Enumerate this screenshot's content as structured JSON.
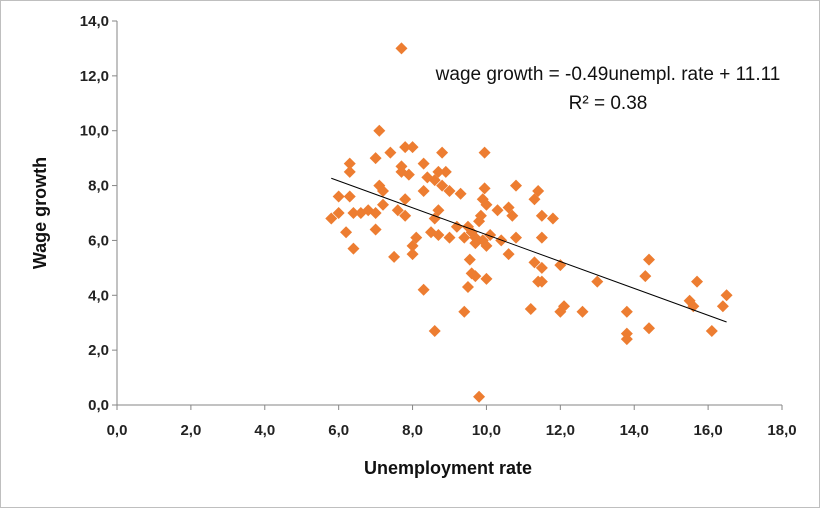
{
  "chart_data": {
    "type": "scatter",
    "xlabel": "Unemployment rate",
    "ylabel": "Wage growth",
    "xlim": [
      0,
      18
    ],
    "ylim": [
      0,
      14
    ],
    "x_ticks": [
      "0,0",
      "2,0",
      "4,0",
      "6,0",
      "8,0",
      "10,0",
      "12,0",
      "14,0",
      "16,0",
      "18,0"
    ],
    "y_ticks": [
      "0,0",
      "2,0",
      "4,0",
      "6,0",
      "8,0",
      "10,0",
      "12,0",
      "14,0"
    ],
    "grid": false,
    "marker_color": "#ED7D31",
    "trendline": {
      "equation": "wage growth = -0.49unempl. rate + 11.11",
      "r2": "R² = 0.38",
      "slope": -0.49,
      "intercept": 11.11,
      "x_range": [
        5.8,
        16.5
      ],
      "color": "#000000"
    },
    "points": [
      [
        7.7,
        13.0
      ],
      [
        7.1,
        10.0
      ],
      [
        7.8,
        9.4
      ],
      [
        8.0,
        9.4
      ],
      [
        8.8,
        9.2
      ],
      [
        9.95,
        9.2
      ],
      [
        7.4,
        9.2
      ],
      [
        7.0,
        9.0
      ],
      [
        8.3,
        8.8
      ],
      [
        8.7,
        8.5
      ],
      [
        8.9,
        8.5
      ],
      [
        6.3,
        8.8
      ],
      [
        6.3,
        8.5
      ],
      [
        7.7,
        8.7
      ],
      [
        7.7,
        8.5
      ],
      [
        7.9,
        8.4
      ],
      [
        8.6,
        8.2
      ],
      [
        8.8,
        8.0
      ],
      [
        8.4,
        8.3
      ],
      [
        9.0,
        7.8
      ],
      [
        9.3,
        7.7
      ],
      [
        9.95,
        7.9
      ],
      [
        10.8,
        8.0
      ],
      [
        11.4,
        7.8
      ],
      [
        6.0,
        7.6
      ],
      [
        6.3,
        7.6
      ],
      [
        7.1,
        8.0
      ],
      [
        7.2,
        7.8
      ],
      [
        7.8,
        7.5
      ],
      [
        8.3,
        7.8
      ],
      [
        9.9,
        7.5
      ],
      [
        10.3,
        7.1
      ],
      [
        10.6,
        7.2
      ],
      [
        10.7,
        6.9
      ],
      [
        11.3,
        7.5
      ],
      [
        11.5,
        6.9
      ],
      [
        11.8,
        6.8
      ],
      [
        5.8,
        6.8
      ],
      [
        6.0,
        7.0
      ],
      [
        6.4,
        7.0
      ],
      [
        6.6,
        7.0
      ],
      [
        6.8,
        7.1
      ],
      [
        7.0,
        7.0
      ],
      [
        7.2,
        7.3
      ],
      [
        7.6,
        7.1
      ],
      [
        7.8,
        6.9
      ],
      [
        8.7,
        7.1
      ],
      [
        8.6,
        6.8
      ],
      [
        9.2,
        6.5
      ],
      [
        9.5,
        6.5
      ],
      [
        9.7,
        6.1
      ],
      [
        9.8,
        6.7
      ],
      [
        9.85,
        6.9
      ],
      [
        10.0,
        7.3
      ],
      [
        10.1,
        6.2
      ],
      [
        10.4,
        6.0
      ],
      [
        10.8,
        6.1
      ],
      [
        11.5,
        6.1
      ],
      [
        6.2,
        6.3
      ],
      [
        7.0,
        6.4
      ],
      [
        8.1,
        6.1
      ],
      [
        8.0,
        5.8
      ],
      [
        8.5,
        6.3
      ],
      [
        8.7,
        6.2
      ],
      [
        9.0,
        6.1
      ],
      [
        9.4,
        6.1
      ],
      [
        9.7,
        5.9
      ],
      [
        9.9,
        6.0
      ],
      [
        9.6,
        6.3
      ],
      [
        9.55,
        5.3
      ],
      [
        10.0,
        5.8
      ],
      [
        8.0,
        5.5
      ],
      [
        7.5,
        5.4
      ],
      [
        6.4,
        5.7
      ],
      [
        9.6,
        4.8
      ],
      [
        9.7,
        4.7
      ],
      [
        9.5,
        4.3
      ],
      [
        10.0,
        4.6
      ],
      [
        10.6,
        5.5
      ],
      [
        11.3,
        5.2
      ],
      [
        11.5,
        5.0
      ],
      [
        11.4,
        4.5
      ],
      [
        12.0,
        5.1
      ],
      [
        11.5,
        4.5
      ],
      [
        14.4,
        5.3
      ],
      [
        14.3,
        4.7
      ],
      [
        15.7,
        4.5
      ],
      [
        8.3,
        4.2
      ],
      [
        11.2,
        3.5
      ],
      [
        12.0,
        3.4
      ],
      [
        12.1,
        3.6
      ],
      [
        12.6,
        3.4
      ],
      [
        13.0,
        4.5
      ],
      [
        13.8,
        3.4
      ],
      [
        9.4,
        3.4
      ],
      [
        15.5,
        3.8
      ],
      [
        15.6,
        3.6
      ],
      [
        16.4,
        3.6
      ],
      [
        16.5,
        4.0
      ],
      [
        8.6,
        2.7
      ],
      [
        13.8,
        2.6
      ],
      [
        13.8,
        2.4
      ],
      [
        14.4,
        2.8
      ],
      [
        16.1,
        2.7
      ],
      [
        9.8,
        0.3
      ]
    ]
  }
}
